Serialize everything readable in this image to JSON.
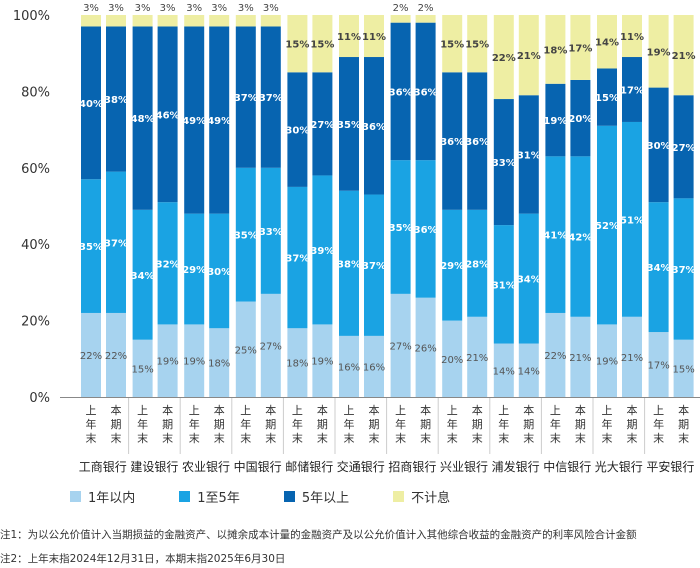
{
  "chart_data": {
    "type": "bar",
    "stacked": true,
    "ylim": [
      0,
      100
    ],
    "ytick_labels": [
      "0%",
      "20%",
      "40%",
      "60%",
      "80%",
      "100%"
    ],
    "banks": [
      "工商银行",
      "建设银行",
      "农业银行",
      "中国银行",
      "邮储银行",
      "交通银行",
      "招商银行",
      "兴业银行",
      "浦发银行",
      "中信银行",
      "光大银行",
      "平安银行"
    ],
    "period_labels": [
      "上年末",
      "本期末"
    ],
    "series": [
      {
        "name": "1年以内",
        "color": "#a7d3ef",
        "values": [
          22,
          22,
          15,
          19,
          19,
          18,
          25,
          27,
          18,
          19,
          16,
          16,
          27,
          26,
          20,
          21,
          14,
          14,
          22,
          21,
          19,
          21,
          17,
          15
        ]
      },
      {
        "name": "1至5年",
        "color": "#1aa3e3",
        "values": [
          35,
          37,
          34,
          32,
          29,
          30,
          35,
          33,
          37,
          39,
          38,
          37,
          35,
          36,
          29,
          28,
          31,
          34,
          41,
          42,
          52,
          51,
          34,
          37
        ]
      },
      {
        "name": "5年以上",
        "color": "#0764b0",
        "values": [
          40,
          38,
          48,
          46,
          49,
          49,
          37,
          37,
          30,
          27,
          35,
          36,
          36,
          36,
          36,
          36,
          33,
          31,
          19,
          20,
          15,
          17,
          30,
          27
        ]
      },
      {
        "name": "不计息",
        "color": "#eeeea3",
        "values": [
          3,
          3,
          3,
          3,
          3,
          3,
          3,
          3,
          15,
          15,
          11,
          11,
          2,
          2,
          15,
          15,
          22,
          21,
          18,
          17,
          14,
          11,
          19,
          21
        ]
      }
    ],
    "totals": [
      100,
      100,
      100,
      100,
      100,
      100,
      100,
      100,
      100,
      100,
      100,
      100,
      100,
      100,
      100,
      100,
      100,
      100,
      100,
      100,
      100,
      100,
      100,
      100
    ]
  },
  "notes": {
    "note1": "注1：为以公允价值计入当期损益的金融资产、以摊余成本计量的金融资产及以公允价值计入其他综合收益的金融资产的利率风险合计金额",
    "note2": "注2：上年末指2024年12月31日，本期末指2025年6月30日"
  }
}
